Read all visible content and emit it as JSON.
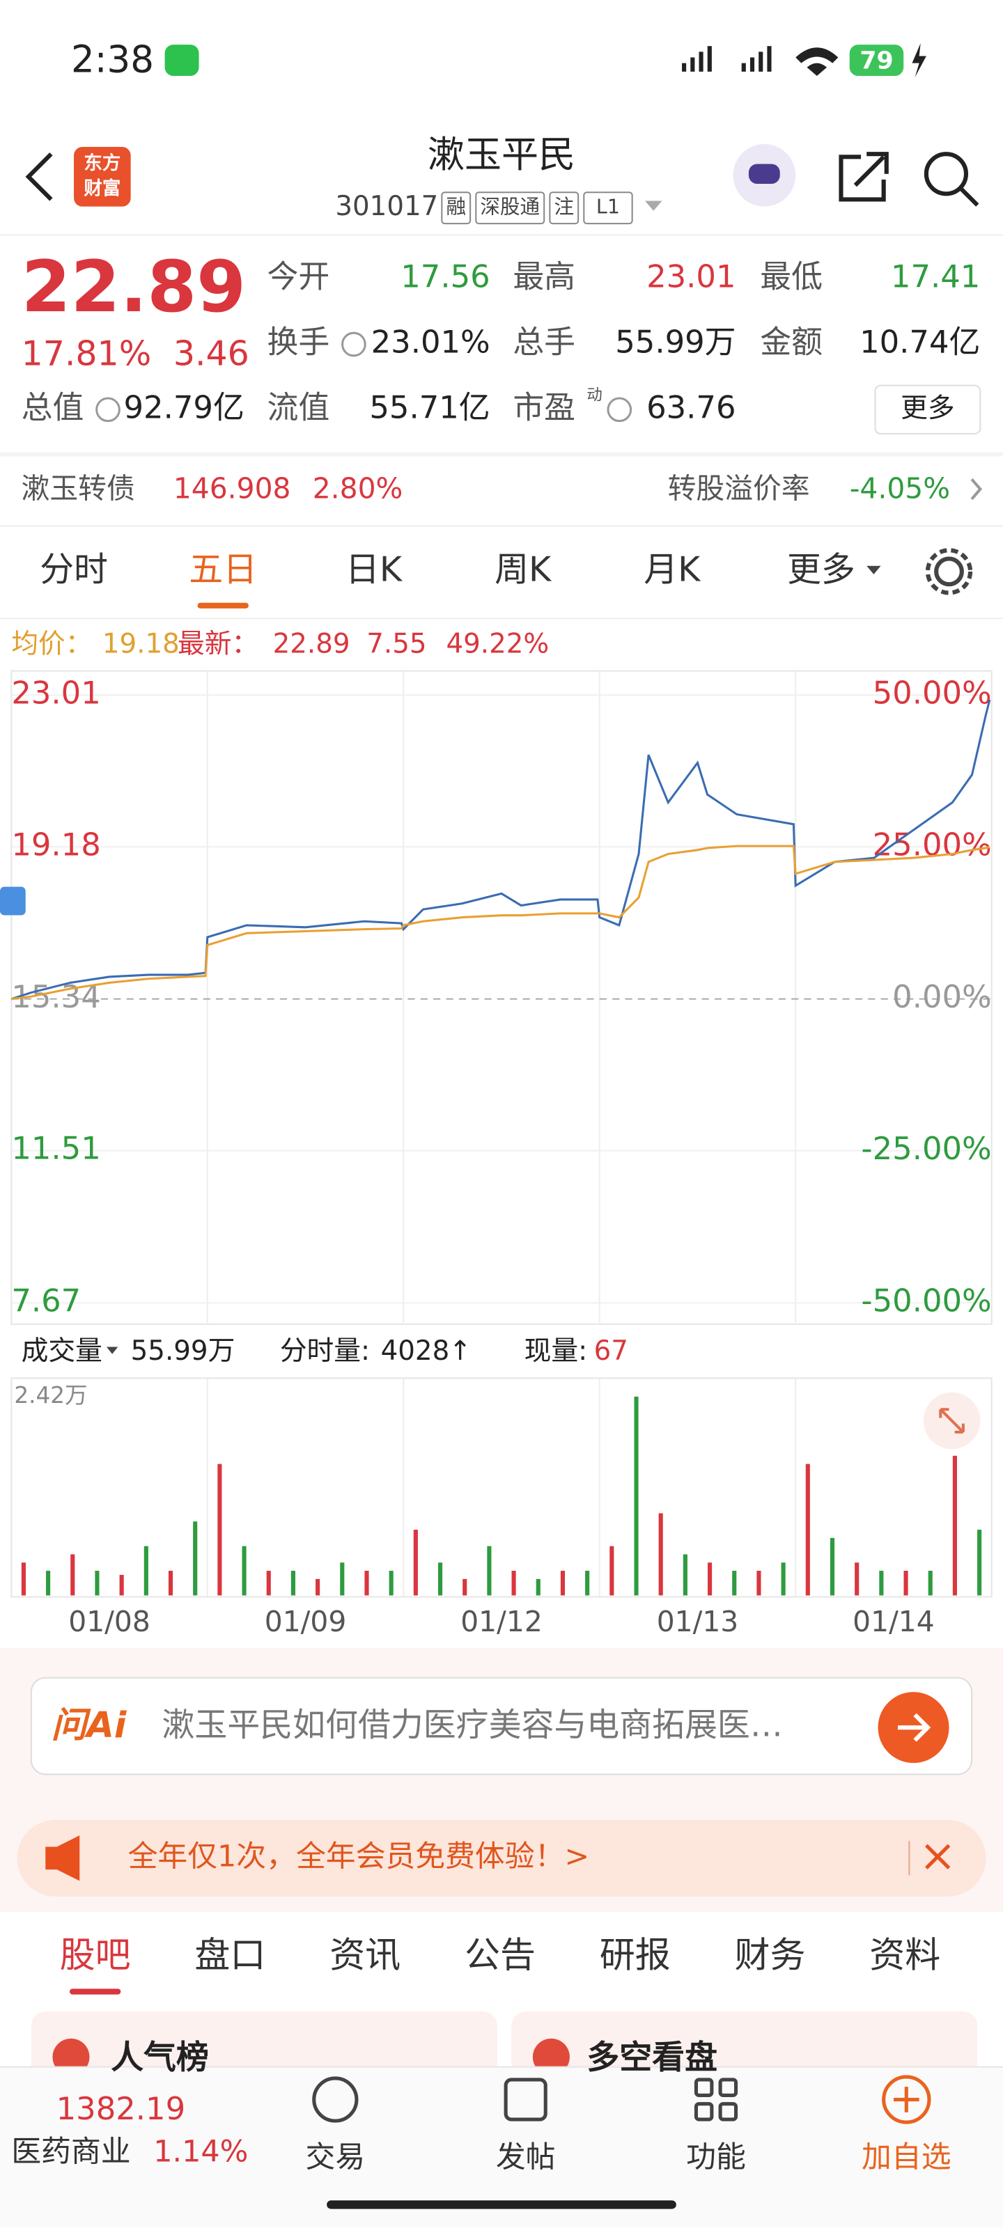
{
  "status": {
    "time": "2:38",
    "battery": "79"
  },
  "header": {
    "logo": [
      "东方",
      "财富"
    ],
    "title": "漱玉平民",
    "code": "301017",
    "tags": [
      "融",
      "深股通",
      "注",
      "L1"
    ]
  },
  "quote": {
    "price": "22.89",
    "change_pct": "17.81%",
    "change": "3.46",
    "fields": [
      {
        "label": "今开",
        "value": "17.56"
      },
      {
        "label": "最高",
        "value": "23.01"
      },
      {
        "label": "最低",
        "value": "17.41"
      },
      {
        "label": "换手",
        "value": "23.01%"
      },
      {
        "label": "总手",
        "value": "55.99万"
      },
      {
        "label": "金额",
        "value": "10.74亿"
      },
      {
        "label": "总值",
        "value": "92.79亿"
      },
      {
        "label": "流值",
        "value": "55.71亿"
      },
      {
        "label": "市盈",
        "sup": "动",
        "value": "63.76"
      }
    ],
    "more": "更多"
  },
  "bond": {
    "name": "漱玉转债",
    "price": "146.908",
    "pct": "2.80%",
    "premium_label": "转股溢价率",
    "premium": "-4.05%"
  },
  "tabs": {
    "items": [
      "分时",
      "五日",
      "日K",
      "周K",
      "月K",
      "更多"
    ],
    "active": 1
  },
  "info": {
    "avg_label": "均价：",
    "avg": "19.18",
    "last_label": "最新：",
    "last": "22.89",
    "change": "7.55",
    "pct": "49.22%"
  },
  "chart_data": [
    {
      "type": "line",
      "xlim": [
        0,
        5
      ],
      "ylim": [
        7.67,
        23.01
      ],
      "y2lim": [
        -50,
        50
      ],
      "yticks": [
        23.01,
        19.18,
        15.34,
        11.51,
        7.67
      ],
      "y2ticks": [
        {
          "value": 50,
          "label": "50.00%"
        },
        {
          "value": 25,
          "label": "25.00%"
        },
        {
          "value": 0,
          "label": "0.00%"
        },
        {
          "value": -25,
          "label": "-25.00%"
        },
        {
          "value": -50,
          "label": "-50.00%"
        }
      ],
      "x": [
        0,
        0.1,
        0.3,
        0.5,
        0.7,
        0.9,
        0.99,
        1.0,
        1.2,
        1.5,
        1.8,
        1.99,
        2.0,
        2.1,
        2.3,
        2.5,
        2.6,
        2.8,
        2.99,
        3.0,
        3.1,
        3.2,
        3.25,
        3.35,
        3.5,
        3.55,
        3.7,
        3.99,
        4.0,
        4.2,
        4.4,
        4.6,
        4.8,
        4.9,
        4.97,
        4.99
      ],
      "series": [
        {
          "color": "#3a6cb3",
          "values": [
            15.34,
            15.5,
            15.75,
            15.9,
            15.95,
            15.95,
            16.0,
            16.9,
            17.2,
            17.15,
            17.3,
            17.25,
            17.1,
            17.6,
            17.75,
            18.0,
            17.7,
            17.85,
            17.85,
            17.4,
            17.2,
            19.0,
            21.5,
            20.3,
            21.3,
            20.5,
            20.0,
            19.75,
            18.2,
            18.8,
            18.9,
            19.6,
            20.3,
            21.0,
            22.5,
            22.89
          ]
        },
        {
          "color": "#e8a033",
          "values": [
            15.34,
            15.4,
            15.6,
            15.75,
            15.85,
            15.9,
            15.92,
            16.7,
            17.0,
            17.05,
            17.1,
            17.12,
            17.2,
            17.3,
            17.4,
            17.45,
            17.45,
            17.5,
            17.5,
            17.5,
            17.4,
            17.9,
            18.8,
            19.0,
            19.1,
            19.15,
            19.2,
            19.2,
            18.5,
            18.8,
            18.85,
            18.9,
            19.0,
            19.1,
            19.15,
            19.18
          ]
        }
      ]
    },
    {
      "type": "bar",
      "xlim": [
        0,
        5
      ],
      "ylim": [
        0,
        2.42
      ],
      "yticks": [
        {
          "value": 2.42,
          "label": "2.42万"
        }
      ],
      "xticks": [
        {
          "value": 0.5,
          "label": "01/08"
        },
        {
          "value": 1.5,
          "label": "01/09"
        },
        {
          "value": 2.5,
          "label": "01/12"
        },
        {
          "value": 3.5,
          "label": "01/13"
        },
        {
          "value": 4.5,
          "label": "01/14"
        }
      ],
      "x": [
        0.0625,
        0.1875,
        0.3125,
        0.4375,
        0.5625,
        0.6875,
        0.8125,
        0.9375,
        1.0625,
        1.1875,
        1.3125,
        1.4375,
        1.5625,
        1.6875,
        1.8125,
        1.9375,
        2.0625,
        2.1875,
        2.3125,
        2.4375,
        2.5625,
        2.6875,
        2.8125,
        2.9375,
        3.0625,
        3.1875,
        3.3125,
        3.4375,
        3.5625,
        3.6875,
        3.8125,
        3.9375,
        4.0625,
        4.1875,
        4.3125,
        4.4375,
        4.5625,
        4.6875,
        4.8125,
        4.9375
      ],
      "values": [
        0.4,
        0.3,
        0.5,
        0.3,
        0.25,
        0.6,
        0.3,
        0.9,
        1.6,
        0.6,
        0.3,
        0.3,
        0.2,
        0.4,
        0.3,
        0.3,
        0.8,
        0.4,
        0.2,
        0.6,
        0.3,
        0.2,
        0.3,
        0.3,
        0.6,
        2.42,
        1.0,
        0.5,
        0.4,
        0.3,
        0.3,
        0.4,
        1.6,
        0.7,
        0.4,
        0.3,
        0.3,
        0.3,
        1.7,
        0.8
      ],
      "colors": [
        "#d9363e",
        "#2e9b3e",
        "#d9363e",
        "#2e9b3e",
        "#d9363e",
        "#2e9b3e",
        "#d9363e",
        "#2e9b3e",
        "#d9363e",
        "#2e9b3e",
        "#d9363e",
        "#2e9b3e",
        "#d9363e",
        "#2e9b3e",
        "#d9363e",
        "#2e9b3e",
        "#d9363e",
        "#2e9b3e",
        "#d9363e",
        "#2e9b3e",
        "#d9363e",
        "#2e9b3e",
        "#d9363e",
        "#2e9b3e",
        "#d9363e",
        "#2e9b3e",
        "#d9363e",
        "#2e9b3e",
        "#d9363e",
        "#2e9b3e",
        "#d9363e",
        "#2e9b3e",
        "#d9363e",
        "#2e9b3e",
        "#d9363e",
        "#2e9b3e",
        "#d9363e",
        "#2e9b3e",
        "#d9363e",
        "#2e9b3e"
      ]
    }
  ],
  "volume_info": {
    "label": "成交量",
    "total": "55.99万",
    "tick_label": "分时量:",
    "tick": "4028",
    "arrow": "↑",
    "now_label": "现量:",
    "now": "67"
  },
  "ai": {
    "logo": "问Ai",
    "text": "漱玉平民如何借力医疗美容与电商拓展医…"
  },
  "banner": {
    "text": "全年仅1次，全年会员免费体验！>"
  },
  "sections": {
    "items": [
      "股吧",
      "盘口",
      "资讯",
      "公告",
      "研报",
      "财务",
      "资料"
    ],
    "active": 0
  },
  "cards": [
    "人气榜",
    "多空看盘"
  ],
  "nav": {
    "index_value": "1382.19",
    "index_name": "医药商业",
    "index_pct": "1.14%",
    "items": [
      "交易",
      "发帖",
      "功能",
      "加自选"
    ]
  }
}
